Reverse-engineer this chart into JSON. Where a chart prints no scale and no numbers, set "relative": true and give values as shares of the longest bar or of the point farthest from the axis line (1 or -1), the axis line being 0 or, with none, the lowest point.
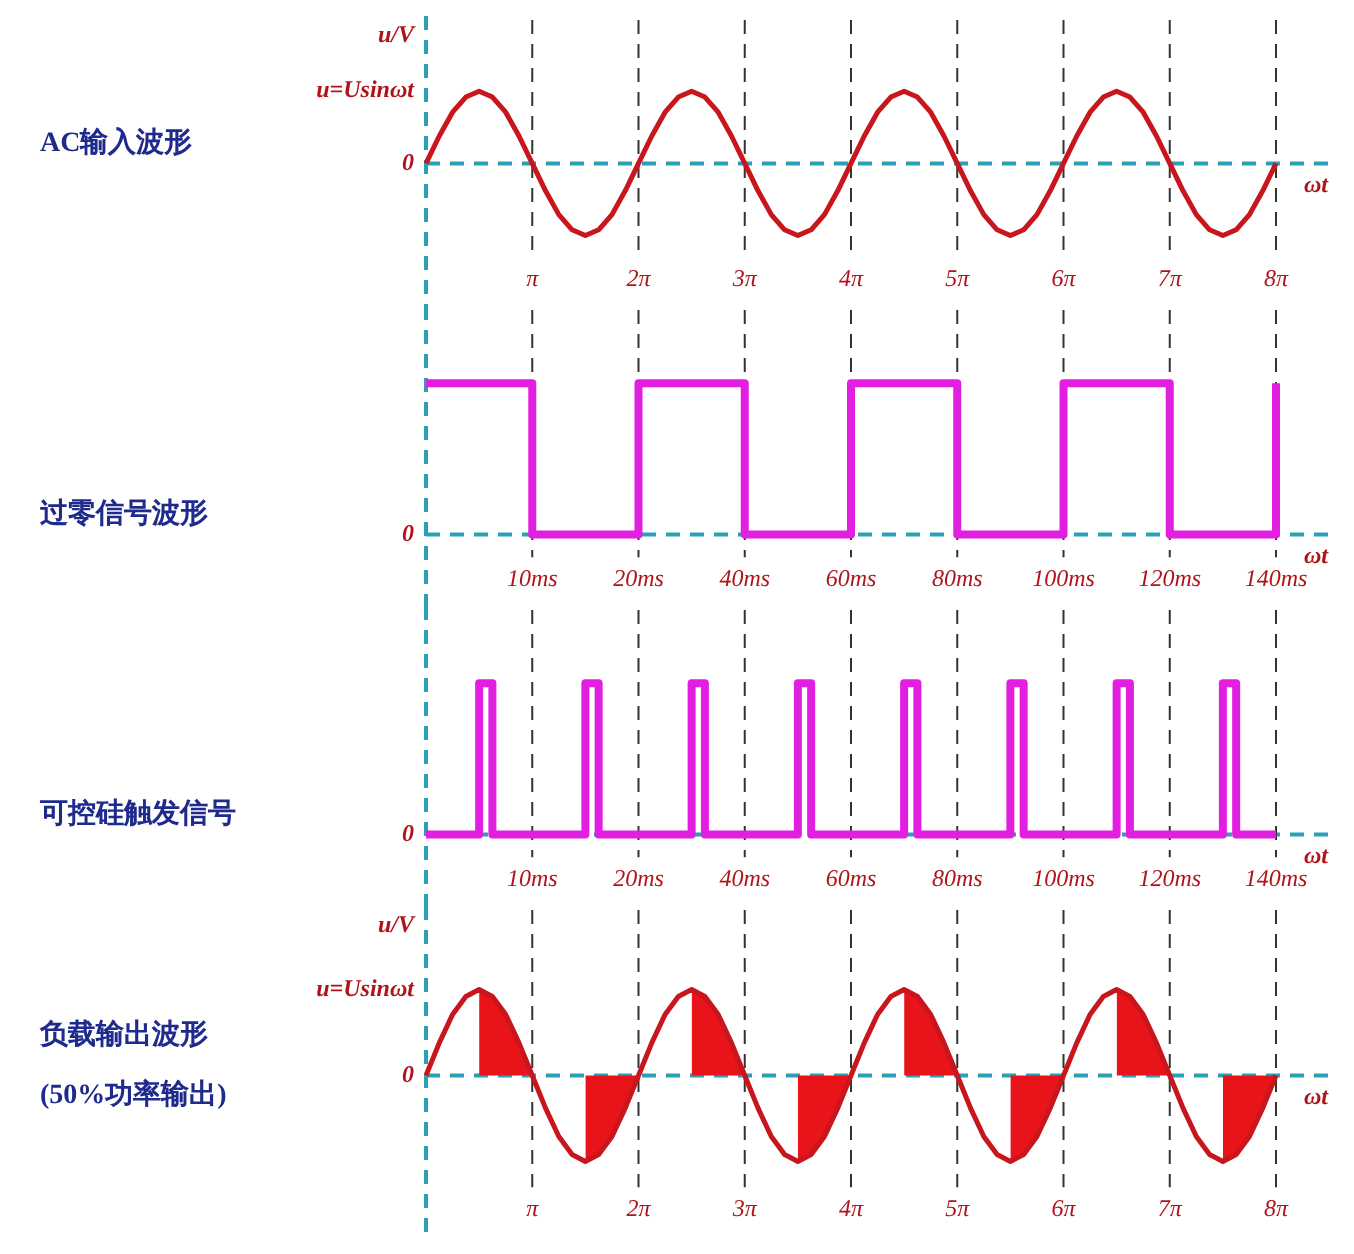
{
  "chart_data": [
    {
      "type": "line",
      "ylabel": "AC输入波形",
      "xlabel": "ωt",
      "relative": true,
      "categories": [
        null,
        null,
        null,
        null,
        null,
        null,
        null,
        null,
        "π",
        null,
        null,
        null,
        null,
        null,
        null,
        null,
        "2π",
        null,
        null,
        null,
        null,
        null,
        null,
        null,
        "3π",
        null,
        null,
        null,
        null,
        null,
        null,
        null,
        "4π",
        null,
        null,
        null,
        null,
        null,
        null,
        null,
        "5π",
        null,
        null,
        null,
        null,
        null,
        null,
        null,
        "6π",
        null,
        null,
        null,
        null,
        null,
        null,
        null,
        "7π",
        null,
        null,
        null,
        null,
        null,
        null,
        null,
        "8π"
      ],
      "series": [
        {
          "color": "#c8161d",
          "values": [
            0,
            0.38,
            0.71,
            0.92,
            1,
            0.92,
            0.71,
            0.38,
            0,
            -0.38,
            -0.71,
            -0.92,
            -1,
            -0.92,
            -0.71,
            -0.38,
            0,
            0.38,
            0.71,
            0.92,
            1,
            0.92,
            0.71,
            0.38,
            0,
            -0.38,
            -0.71,
            -0.92,
            -1,
            -0.92,
            -0.71,
            -0.38,
            0,
            0.38,
            0.71,
            0.92,
            1,
            0.92,
            0.71,
            0.38,
            0,
            -0.38,
            -0.71,
            -0.92,
            -1,
            -0.92,
            -0.71,
            -0.38,
            0,
            0.38,
            0.71,
            0.92,
            1,
            0.92,
            0.71,
            0.38,
            0,
            -0.38,
            -0.71,
            -0.92,
            -1,
            -0.92,
            -0.71,
            -0.38,
            0
          ]
        }
      ],
      "annotations": [
        "u/V",
        "u=Usinωt",
        "0"
      ],
      "ref_lines": [
        {
          "axis": "y",
          "value": 0,
          "color": "#2aa0b8",
          "line_style": "dashed"
        },
        {
          "axis": "x",
          "value": "π",
          "color": "#333333",
          "line_style": "dashed"
        },
        {
          "axis": "x",
          "value": "2π",
          "color": "#333333",
          "line_style": "dashed"
        },
        {
          "axis": "x",
          "value": "3π",
          "color": "#333333",
          "line_style": "dashed"
        },
        {
          "axis": "x",
          "value": "4π",
          "color": "#333333",
          "line_style": "dashed"
        },
        {
          "axis": "x",
          "value": "5π",
          "color": "#333333",
          "line_style": "dashed"
        },
        {
          "axis": "x",
          "value": "6π",
          "color": "#333333",
          "line_style": "dashed"
        },
        {
          "axis": "x",
          "value": "7π",
          "color": "#333333",
          "line_style": "dashed"
        },
        {
          "axis": "x",
          "value": "8π",
          "color": "#333333",
          "line_style": "dashed"
        }
      ]
    },
    {
      "type": "step",
      "ylabel": "过零信号波形",
      "xlabel": "ωt",
      "relative": true,
      "categories": [
        null,
        "10ms",
        "20ms",
        "40ms",
        "60ms",
        "80ms",
        "100ms",
        "120ms",
        "140ms"
      ],
      "series": [
        {
          "color": "#e21ee0",
          "values": [
            1,
            0,
            1,
            0,
            1,
            0,
            1,
            0,
            1
          ]
        }
      ],
      "annotations": [
        "0"
      ],
      "ref_lines": [
        {
          "axis": "y",
          "value": 0,
          "color": "#2aa0b8",
          "line_style": "dashed"
        },
        {
          "axis": "x",
          "value": "10ms",
          "color": "#333333",
          "line_style": "dashed"
        },
        {
          "axis": "x",
          "value": "20ms",
          "color": "#333333",
          "line_style": "dashed"
        },
        {
          "axis": "x",
          "value": "40ms",
          "color": "#333333",
          "line_style": "dashed"
        },
        {
          "axis": "x",
          "value": "60ms",
          "color": "#333333",
          "line_style": "dashed"
        },
        {
          "axis": "x",
          "value": "80ms",
          "color": "#333333",
          "line_style": "dashed"
        },
        {
          "axis": "x",
          "value": "100ms",
          "color": "#333333",
          "line_style": "dashed"
        },
        {
          "axis": "x",
          "value": "120ms",
          "color": "#333333",
          "line_style": "dashed"
        },
        {
          "axis": "x",
          "value": "140ms",
          "color": "#333333",
          "line_style": "dashed"
        }
      ]
    },
    {
      "type": "step",
      "ylabel": "可控硅触发信号",
      "xlabel": "ωt",
      "relative": true,
      "categories": [
        null,
        null,
        null,
        null,
        null,
        null,
        null,
        null,
        "10ms",
        null,
        null,
        null,
        null,
        null,
        null,
        null,
        "20ms",
        null,
        null,
        null,
        null,
        null,
        null,
        null,
        "40ms",
        null,
        null,
        null,
        null,
        null,
        null,
        null,
        "60ms",
        null,
        null,
        null,
        null,
        null,
        null,
        null,
        "80ms",
        null,
        null,
        null,
        null,
        null,
        null,
        null,
        "100ms",
        null,
        null,
        null,
        null,
        null,
        null,
        null,
        "120ms",
        null,
        null,
        null,
        null,
        null,
        null,
        null,
        "140ms"
      ],
      "series": [
        {
          "color": "#e21ee0",
          "values": [
            0,
            0,
            0,
            0,
            1,
            0,
            0,
            0,
            0,
            0,
            0,
            0,
            1,
            0,
            0,
            0,
            0,
            0,
            0,
            0,
            1,
            0,
            0,
            0,
            0,
            0,
            0,
            0,
            1,
            0,
            0,
            0,
            0,
            0,
            0,
            0,
            1,
            0,
            0,
            0,
            0,
            0,
            0,
            0,
            1,
            0,
            0,
            0,
            0,
            0,
            0,
            0,
            1,
            0,
            0,
            0,
            0,
            0,
            0,
            0,
            1,
            0,
            0,
            0,
            0
          ]
        }
      ],
      "annotations": [
        "0"
      ],
      "ref_lines": [
        {
          "axis": "y",
          "value": 0,
          "color": "#2aa0b8",
          "line_style": "dashed"
        },
        {
          "axis": "x",
          "value": "10ms",
          "color": "#333333",
          "line_style": "dashed"
        },
        {
          "axis": "x",
          "value": "20ms",
          "color": "#333333",
          "line_style": "dashed"
        },
        {
          "axis": "x",
          "value": "40ms",
          "color": "#333333",
          "line_style": "dashed"
        },
        {
          "axis": "x",
          "value": "60ms",
          "color": "#333333",
          "line_style": "dashed"
        },
        {
          "axis": "x",
          "value": "80ms",
          "color": "#333333",
          "line_style": "dashed"
        },
        {
          "axis": "x",
          "value": "100ms",
          "color": "#333333",
          "line_style": "dashed"
        },
        {
          "axis": "x",
          "value": "120ms",
          "color": "#333333",
          "line_style": "dashed"
        },
        {
          "axis": "x",
          "value": "140ms",
          "color": "#333333",
          "line_style": "dashed"
        }
      ]
    },
    {
      "type": "line",
      "ylabel": "负载输出波形\n(50%功率输出)",
      "xlabel": "ωt",
      "relative": true,
      "categories": [
        null,
        null,
        null,
        null,
        null,
        null,
        null,
        null,
        "π",
        null,
        null,
        null,
        null,
        null,
        null,
        null,
        "2π",
        null,
        null,
        null,
        null,
        null,
        null,
        null,
        "3π",
        null,
        null,
        null,
        null,
        null,
        null,
        null,
        "4π",
        null,
        null,
        null,
        null,
        null,
        null,
        null,
        "5π",
        null,
        null,
        null,
        null,
        null,
        null,
        null,
        "6π",
        null,
        null,
        null,
        null,
        null,
        null,
        null,
        "7π",
        null,
        null,
        null,
        null,
        null,
        null,
        null,
        "8π"
      ],
      "series": [
        {
          "type": "line",
          "color": "#c8161d",
          "values": [
            0,
            0.38,
            0.71,
            0.92,
            1,
            0.92,
            0.71,
            0.38,
            0,
            -0.38,
            -0.71,
            -0.92,
            -1,
            -0.92,
            -0.71,
            -0.38,
            0,
            0.38,
            0.71,
            0.92,
            1,
            0.92,
            0.71,
            0.38,
            0,
            -0.38,
            -0.71,
            -0.92,
            -1,
            -0.92,
            -0.71,
            -0.38,
            0,
            0.38,
            0.71,
            0.92,
            1,
            0.92,
            0.71,
            0.38,
            0,
            -0.38,
            -0.71,
            -0.92,
            -1,
            -0.92,
            -0.71,
            -0.38,
            0,
            0.38,
            0.71,
            0.92,
            1,
            0.92,
            0.71,
            0.38,
            0,
            -0.38,
            -0.71,
            -0.92,
            -1,
            -0.92,
            -0.71,
            -0.38,
            0
          ]
        },
        {
          "type": "area",
          "color": "#e8141a",
          "values": [
            null,
            null,
            null,
            null,
            1,
            0.92,
            0.71,
            0.38,
            0,
            null,
            null,
            null,
            -1,
            -0.92,
            -0.71,
            -0.38,
            0,
            null,
            null,
            null,
            1,
            0.92,
            0.71,
            0.38,
            0,
            null,
            null,
            null,
            -1,
            -0.92,
            -0.71,
            -0.38,
            0,
            null,
            null,
            null,
            1,
            0.92,
            0.71,
            0.38,
            0,
            null,
            null,
            null,
            -1,
            -0.92,
            -0.71,
            -0.38,
            0,
            null,
            null,
            null,
            1,
            0.92,
            0.71,
            0.38,
            0,
            null,
            null,
            null,
            -1,
            -0.92,
            -0.71,
            -0.38,
            0
          ]
        }
      ],
      "annotations": [
        "u/V",
        "u=Usinωt",
        "0"
      ],
      "ref_lines": [
        {
          "axis": "y",
          "value": 0,
          "color": "#2aa0b8",
          "line_style": "dashed"
        },
        {
          "axis": "x",
          "value": "π",
          "color": "#333333",
          "line_style": "dashed"
        },
        {
          "axis": "x",
          "value": "2π",
          "color": "#333333",
          "line_style": "dashed"
        },
        {
          "axis": "x",
          "value": "3π",
          "color": "#333333",
          "line_style": "dashed"
        },
        {
          "axis": "x",
          "value": "4π",
          "color": "#333333",
          "line_style": "dashed"
        },
        {
          "axis": "x",
          "value": "5π",
          "color": "#333333",
          "line_style": "dashed"
        },
        {
          "axis": "x",
          "value": "6π",
          "color": "#333333",
          "line_style": "dashed"
        },
        {
          "axis": "x",
          "value": "7π",
          "color": "#333333",
          "line_style": "dashed"
        },
        {
          "axis": "x",
          "value": "8π",
          "color": "#333333",
          "line_style": "dashed"
        }
      ]
    }
  ]
}
